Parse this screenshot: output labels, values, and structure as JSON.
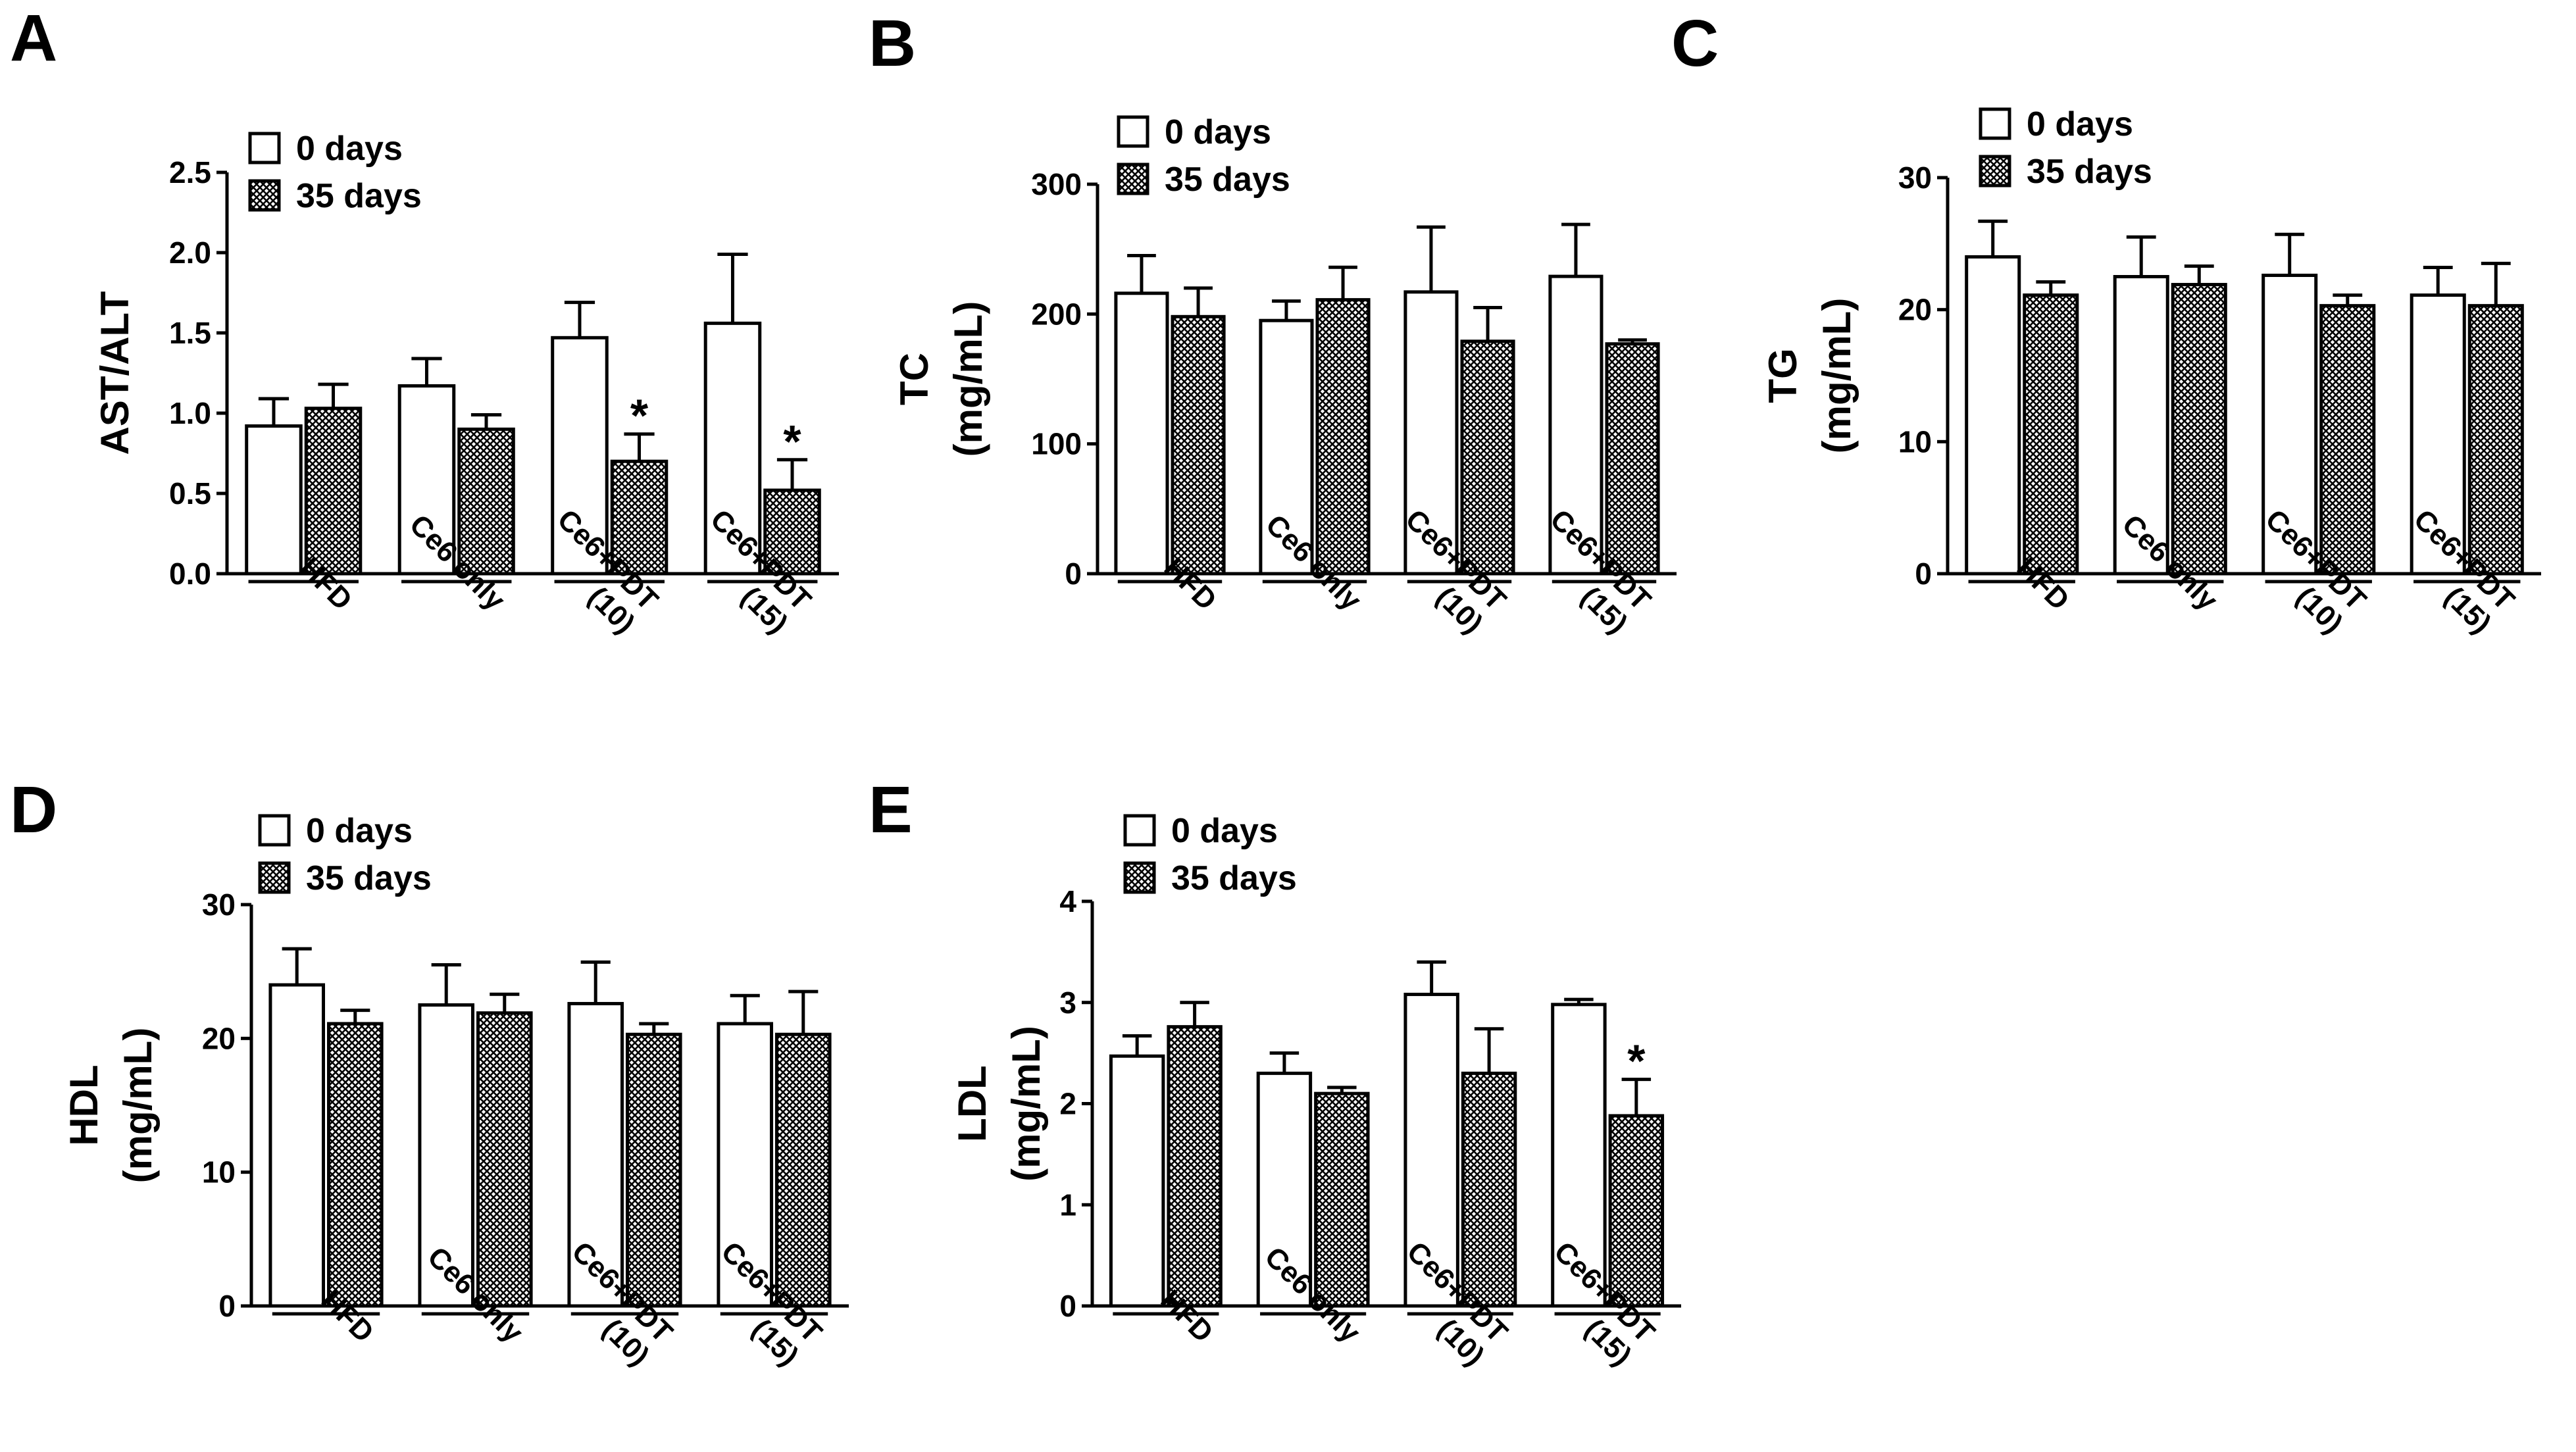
{
  "legend": {
    "series0": "0 days",
    "series1": "35 days"
  },
  "chart_data": [
    {
      "panel": "A",
      "type": "bar",
      "ylabel": [
        "AST/ALT"
      ],
      "ylim": [
        0,
        2.5
      ],
      "yticks": [
        "0.0",
        "0.5",
        "1.0",
        "1.5",
        "2.0",
        "2.5"
      ],
      "categories": [
        [
          "HFD"
        ],
        [
          "Ce6 only"
        ],
        [
          "Ce6+PDT",
          "(10)"
        ],
        [
          "Ce6+PDT",
          "(15)"
        ]
      ],
      "series": [
        {
          "name": "0 days",
          "fill": "open",
          "values": [
            0.92,
            1.17,
            1.47,
            1.56
          ],
          "errors": [
            0.17,
            0.17,
            0.22,
            0.43
          ]
        },
        {
          "name": "35 days",
          "fill": "crosshatch",
          "values": [
            1.03,
            0.9,
            0.7,
            0.52
          ],
          "errors": [
            0.15,
            0.09,
            0.17,
            0.19
          ],
          "marks": [
            "",
            "",
            "*",
            "*"
          ]
        }
      ]
    },
    {
      "panel": "B",
      "type": "bar",
      "ylabel": [
        "TC",
        "(mg/mL)"
      ],
      "ylim": [
        0,
        300
      ],
      "yticks": [
        "0",
        "100",
        "200",
        "300"
      ],
      "categories": [
        [
          "HFD"
        ],
        [
          "Ce6 only"
        ],
        [
          "Ce6+PDT",
          "(10)"
        ],
        [
          "Ce6+PDT",
          "(15)"
        ]
      ],
      "series": [
        {
          "name": "0 days",
          "fill": "open",
          "values": [
            216,
            195,
            217,
            229
          ],
          "errors": [
            29,
            15,
            50,
            40
          ]
        },
        {
          "name": "35 days",
          "fill": "crosshatch",
          "values": [
            198,
            211,
            179,
            177
          ],
          "errors": [
            22,
            25,
            26,
            3
          ],
          "marks": [
            "",
            "",
            "",
            ""
          ]
        }
      ]
    },
    {
      "panel": "C",
      "type": "bar",
      "ylabel": [
        "TG",
        "(mg/mL)"
      ],
      "ylim": [
        0,
        30
      ],
      "yticks": [
        "0",
        "10",
        "20",
        "30"
      ],
      "categories": [
        [
          "HFD"
        ],
        [
          "Ce6 only"
        ],
        [
          "Ce6+PDT",
          "(10)"
        ],
        [
          "Ce6+PDT",
          "(15)"
        ]
      ],
      "series": [
        {
          "name": "0 days",
          "fill": "open",
          "values": [
            24.0,
            22.5,
            22.6,
            21.1
          ],
          "errors": [
            2.7,
            3.0,
            3.1,
            2.1
          ]
        },
        {
          "name": "35 days",
          "fill": "crosshatch",
          "values": [
            21.1,
            21.9,
            20.3,
            20.3
          ],
          "errors": [
            1.0,
            1.4,
            0.8,
            3.2
          ],
          "marks": [
            "",
            "",
            "",
            ""
          ]
        }
      ]
    },
    {
      "panel": "D",
      "type": "bar",
      "ylabel": [
        "HDL",
        "(mg/mL)"
      ],
      "ylim": [
        0,
        30
      ],
      "yticks": [
        "0",
        "10",
        "20",
        "30"
      ],
      "categories": [
        [
          "HFD"
        ],
        [
          "Ce6 only"
        ],
        [
          "Ce6+PDT",
          "(10)"
        ],
        [
          "Ce6+PDT",
          "(15)"
        ]
      ],
      "series": [
        {
          "name": "0 days",
          "fill": "open",
          "values": [
            24.0,
            22.5,
            22.6,
            21.1
          ],
          "errors": [
            2.7,
            3.0,
            3.1,
            2.1
          ]
        },
        {
          "name": "35 days",
          "fill": "crosshatch",
          "values": [
            21.1,
            21.9,
            20.3,
            20.3
          ],
          "errors": [
            1.0,
            1.4,
            0.8,
            3.2
          ],
          "marks": [
            "",
            "",
            "",
            ""
          ]
        }
      ]
    },
    {
      "panel": "E",
      "type": "bar",
      "ylabel": [
        "LDL",
        "(mg/mL)"
      ],
      "ylim": [
        0,
        4
      ],
      "yticks": [
        "0",
        "1",
        "2",
        "3",
        "4"
      ],
      "categories": [
        [
          "HFD"
        ],
        [
          "Ce6 only"
        ],
        [
          "Ce6+PDT",
          "(10)"
        ],
        [
          "Ce6+PDT",
          "(15)"
        ]
      ],
      "series": [
        {
          "name": "0 days",
          "fill": "open",
          "values": [
            2.47,
            2.3,
            3.08,
            2.98
          ],
          "errors": [
            0.2,
            0.2,
            0.32,
            0.05
          ]
        },
        {
          "name": "35 days",
          "fill": "crosshatch",
          "values": [
            2.76,
            2.1,
            2.3,
            1.88
          ],
          "errors": [
            0.24,
            0.06,
            0.44,
            0.36
          ],
          "marks": [
            "",
            "",
            "",
            "*"
          ]
        }
      ]
    }
  ]
}
